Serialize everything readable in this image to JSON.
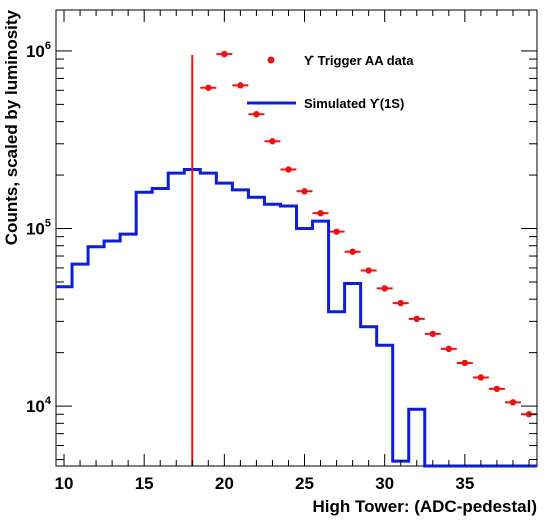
{
  "chart_data": {
    "type": "line",
    "xlabel": "High Tower: (ADC-pedestal)",
    "ylabel": "Counts, scaled by luminosity",
    "xlim": [
      9.5,
      39.5
    ],
    "ylim": [
      4600,
      1700000
    ],
    "y_scale": "log",
    "x_ticks": [
      "10",
      "15",
      "20",
      "25",
      "30",
      "35"
    ],
    "y_ticks": [
      {
        "base": "10",
        "exp": "4",
        "value": 10000
      },
      {
        "base": "10",
        "exp": "5",
        "value": 100000
      },
      {
        "base": "10",
        "exp": "6",
        "value": 1000000
      }
    ],
    "grid": false,
    "legend": {
      "placement": "top-right",
      "entries": [
        {
          "label": "ϒ Trigger AA data",
          "style": "marker",
          "color": "#ee1111"
        },
        {
          "label": "Simulated ϒ(1S)",
          "style": "line",
          "color": "#0a1fd6"
        }
      ]
    },
    "threshold_line": {
      "x": 18,
      "color": "#ee1111"
    },
    "series": [
      {
        "name": "ϒ Trigger AA data",
        "style": "marker",
        "color": "#ee1111",
        "x": [
          19,
          20,
          21,
          22,
          23,
          24,
          25,
          26,
          27,
          28,
          29,
          30,
          31,
          32,
          33,
          34,
          35,
          36,
          37,
          38,
          39
        ],
        "values": [
          620000,
          960000,
          640000,
          440000,
          310000,
          215000,
          162000,
          122000,
          96000,
          74000,
          58000,
          46000,
          38000,
          31000,
          25500,
          21000,
          17500,
          14500,
          12500,
          10500,
          9000
        ]
      },
      {
        "name": "Simulated ϒ(1S)",
        "style": "step",
        "color": "#0a1fd6",
        "x": [
          9.5,
          10.5,
          11.5,
          12.5,
          13.5,
          14.5,
          15.5,
          16.5,
          17.5,
          18.5,
          19.5,
          20.5,
          21.5,
          22.5,
          23.5,
          24.5,
          25.5,
          26.5,
          27.5,
          28.5,
          29.5,
          30.5,
          31.5,
          32.5,
          33.5,
          34.5,
          35.5,
          36.5,
          37.5,
          38.5
        ],
        "values": [
          47000,
          63000,
          79000,
          85000,
          93000,
          160000,
          168000,
          205000,
          215000,
          205000,
          180000,
          165000,
          150000,
          137000,
          134000,
          100000,
          110000,
          34000,
          49000,
          28000,
          22000,
          4900,
          9600,
          4400,
          4400,
          4400,
          4400,
          4400,
          4400,
          4400
        ]
      }
    ]
  }
}
